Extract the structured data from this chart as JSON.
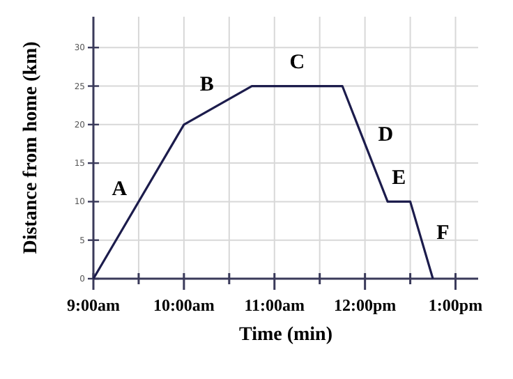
{
  "chart_data": {
    "type": "line",
    "xlabel": "Time (min)",
    "ylabel": "Distance from home (km)",
    "x": [
      9,
      10,
      10.75,
      11.75,
      12.25,
      12.5,
      12.75
    ],
    "series": [
      {
        "color": "#1c1c4c",
        "values": [
          0,
          20,
          25,
          25,
          10,
          10,
          0
        ]
      }
    ],
    "xlim": [
      9,
      13.25
    ],
    "ylim": [
      0,
      34
    ],
    "xticks": [
      {
        "value": 9,
        "label": "9:00am"
      },
      {
        "value": 9.5,
        "label": null
      },
      {
        "value": 10,
        "label": "10:00am"
      },
      {
        "value": 10.5,
        "label": null
      },
      {
        "value": 11,
        "label": "11:00am"
      },
      {
        "value": 11.5,
        "label": null
      },
      {
        "value": 12,
        "label": "12:00pm"
      },
      {
        "value": 12.5,
        "label": null
      },
      {
        "value": 13,
        "label": "1:00pm"
      }
    ],
    "yticks": [
      0,
      5,
      10,
      15,
      20,
      25,
      30
    ],
    "grid": true,
    "marker": "none",
    "line_style": "solid",
    "annotations": [
      "A",
      "B",
      "C",
      "D",
      "E",
      "F"
    ]
  }
}
